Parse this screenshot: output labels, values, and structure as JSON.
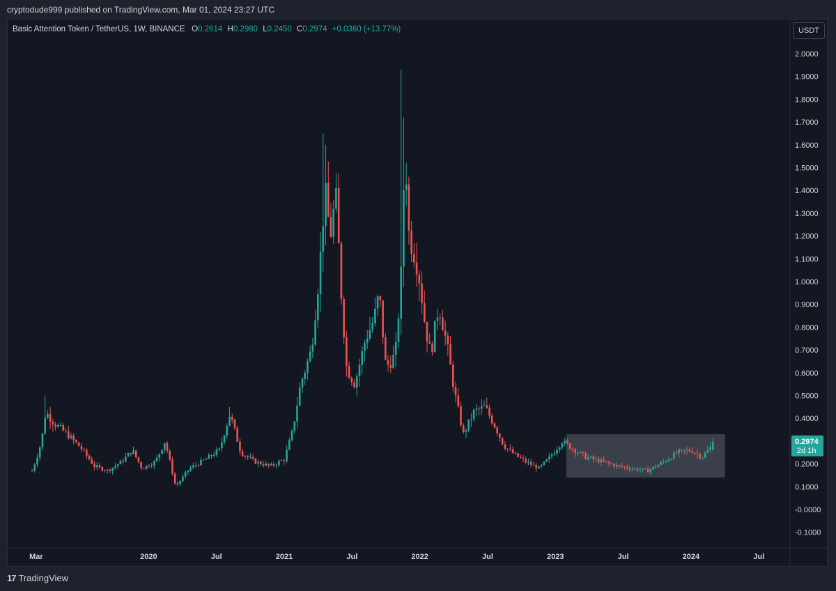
{
  "header": {
    "published_line": "cryptodude999 published on TradingView.com, Mar 01, 2024 23:27 UTC"
  },
  "legend": {
    "symbol": "Basic Attention Token / TetherUS, 1W, BINANCE",
    "o_label": "O",
    "o_value": "0.2614",
    "h_label": "H",
    "h_value": "0.2980",
    "l_label": "L",
    "l_value": "0.2450",
    "c_label": "C",
    "c_value": "0.2974",
    "change": "+0.0360 (+13.77%)"
  },
  "currency_button": "USDT",
  "price_tag": {
    "price": "0.2974",
    "countdown": "2d 1h"
  },
  "footer": {
    "brand": "TradingView",
    "brand_mark": "17"
  },
  "colors": {
    "up": "#26a69a",
    "down": "#ef5350",
    "background": "#131722",
    "outer": "#1e222d",
    "axis_text": "#d1d4dc",
    "highlight_box": "#5d606b"
  },
  "chart_data": {
    "type": "candlestick",
    "interval": "1W",
    "ylim": [
      -0.1,
      2.0
    ],
    "y_ticks": [
      "2.0000",
      "1.9000",
      "1.8000",
      "1.7000",
      "1.6000",
      "1.5000",
      "1.4000",
      "1.3000",
      "1.2000",
      "1.1000",
      "1.0000",
      "0.9000",
      "0.8000",
      "0.7000",
      "0.6000",
      "0.5000",
      "0.4000",
      "0.3000",
      "0.2000",
      "0.1000",
      "-0.0000",
      "-0.1000"
    ],
    "x_ticks": [
      {
        "label": "Mar",
        "t": 2019.17
      },
      {
        "label": "2020",
        "t": 2020.0
      },
      {
        "label": "Jul",
        "t": 2020.5
      },
      {
        "label": "2021",
        "t": 2021.0
      },
      {
        "label": "Jul",
        "t": 2021.5
      },
      {
        "label": "2022",
        "t": 2022.0
      },
      {
        "label": "Jul",
        "t": 2022.5
      },
      {
        "label": "2023",
        "t": 2023.0
      },
      {
        "label": "Jul",
        "t": 2023.5
      },
      {
        "label": "2024",
        "t": 2024.0
      },
      {
        "label": "Jul",
        "t": 2024.5
      }
    ],
    "x_range": [
      2018.96,
      2024.73
    ],
    "last_price": 0.2974,
    "highlight_box": {
      "t0": 2023.08,
      "t1": 2024.25,
      "p0": 0.14,
      "p1": 0.33
    },
    "path_points": [
      [
        2019.14,
        0.17
      ],
      [
        2019.17,
        0.22
      ],
      [
        2019.21,
        0.3
      ],
      [
        2019.24,
        0.43
      ],
      [
        2019.3,
        0.38
      ],
      [
        2019.4,
        0.33
      ],
      [
        2019.5,
        0.27
      ],
      [
        2019.6,
        0.19
      ],
      [
        2019.7,
        0.17
      ],
      [
        2019.8,
        0.21
      ],
      [
        2019.88,
        0.26
      ],
      [
        2019.95,
        0.18
      ],
      [
        2020.05,
        0.21
      ],
      [
        2020.12,
        0.3
      ],
      [
        2020.2,
        0.1
      ],
      [
        2020.3,
        0.18
      ],
      [
        2020.42,
        0.22
      ],
      [
        2020.52,
        0.26
      ],
      [
        2020.6,
        0.42
      ],
      [
        2020.68,
        0.25
      ],
      [
        2020.78,
        0.21
      ],
      [
        2020.9,
        0.19
      ],
      [
        2021.0,
        0.22
      ],
      [
        2021.06,
        0.34
      ],
      [
        2021.12,
        0.55
      ],
      [
        2021.2,
        0.7
      ],
      [
        2021.26,
        1.05
      ],
      [
        2021.3,
        1.4
      ],
      [
        2021.34,
        1.2
      ],
      [
        2021.38,
        1.38
      ],
      [
        2021.42,
        0.95
      ],
      [
        2021.46,
        0.62
      ],
      [
        2021.52,
        0.55
      ],
      [
        2021.6,
        0.75
      ],
      [
        2021.66,
        0.83
      ],
      [
        2021.7,
        0.95
      ],
      [
        2021.75,
        0.62
      ],
      [
        2021.82,
        0.68
      ],
      [
        2021.86,
        1.0
      ],
      [
        2021.89,
        1.6
      ],
      [
        2021.92,
        1.2
      ],
      [
        2021.97,
        1.1
      ],
      [
        2022.0,
        1.0
      ],
      [
        2022.04,
        0.8
      ],
      [
        2022.08,
        0.68
      ],
      [
        2022.14,
        0.9
      ],
      [
        2022.2,
        0.72
      ],
      [
        2022.26,
        0.5
      ],
      [
        2022.32,
        0.33
      ],
      [
        2022.4,
        0.43
      ],
      [
        2022.48,
        0.45
      ],
      [
        2022.55,
        0.37
      ],
      [
        2022.62,
        0.28
      ],
      [
        2022.7,
        0.24
      ],
      [
        2022.78,
        0.21
      ],
      [
        2022.88,
        0.18
      ],
      [
        2022.96,
        0.23
      ],
      [
        2023.05,
        0.3
      ],
      [
        2023.12,
        0.27
      ],
      [
        2023.22,
        0.23
      ],
      [
        2023.34,
        0.21
      ],
      [
        2023.46,
        0.19
      ],
      [
        2023.56,
        0.18
      ],
      [
        2023.68,
        0.17
      ],
      [
        2023.8,
        0.21
      ],
      [
        2023.9,
        0.25
      ],
      [
        2024.0,
        0.26
      ],
      [
        2024.08,
        0.23
      ],
      [
        2024.13,
        0.2614
      ],
      [
        2024.17,
        0.2974
      ]
    ]
  }
}
